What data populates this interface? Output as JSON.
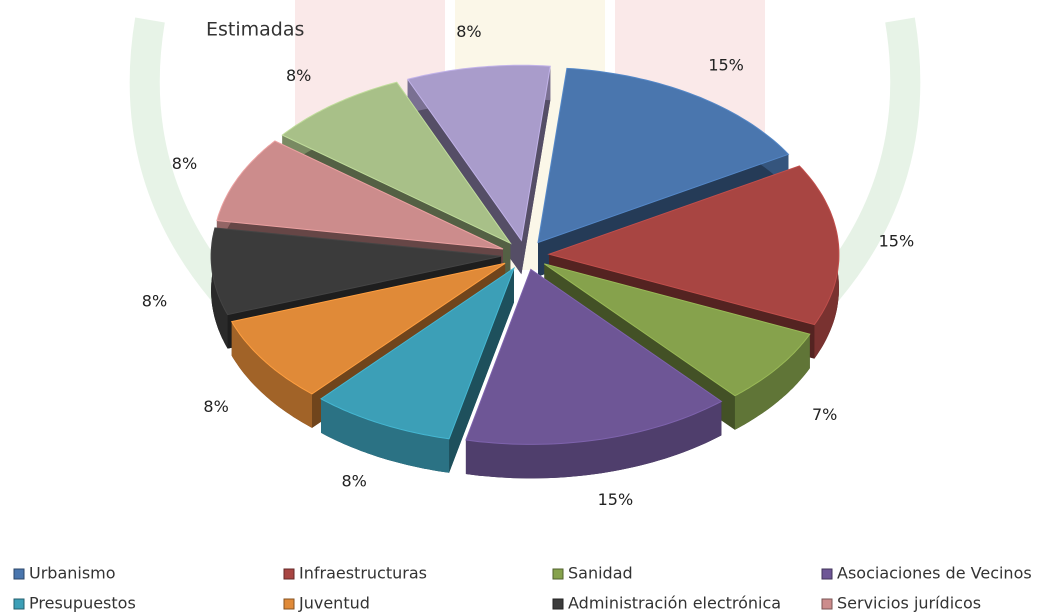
{
  "chart_data": {
    "type": "pie",
    "title": "Estimadas",
    "categories": [
      "Urbanismo",
      "Infraestructuras",
      "Sanidad",
      "Asociaciones de Vecinos",
      "Presupuestos",
      "Juventud",
      "Administración electrónica",
      "Servicios jurídicos",
      null,
      null
    ],
    "values": [
      15,
      15,
      7,
      15,
      8,
      8,
      8,
      8,
      8,
      8
    ],
    "value_labels": [
      "15%",
      "15%",
      "7%",
      "15%",
      "8%",
      "8%",
      "8%",
      "8%",
      "8%",
      "8%"
    ],
    "colors": [
      "#4a76ae",
      "#a84542",
      "#86a24c",
      "#6e5696",
      "#3c9fb7",
      "#e08a38",
      "#3b3b3b",
      "#cc8c8c",
      "#a8c088",
      "#a99ccb"
    ],
    "legend": "bottom"
  }
}
